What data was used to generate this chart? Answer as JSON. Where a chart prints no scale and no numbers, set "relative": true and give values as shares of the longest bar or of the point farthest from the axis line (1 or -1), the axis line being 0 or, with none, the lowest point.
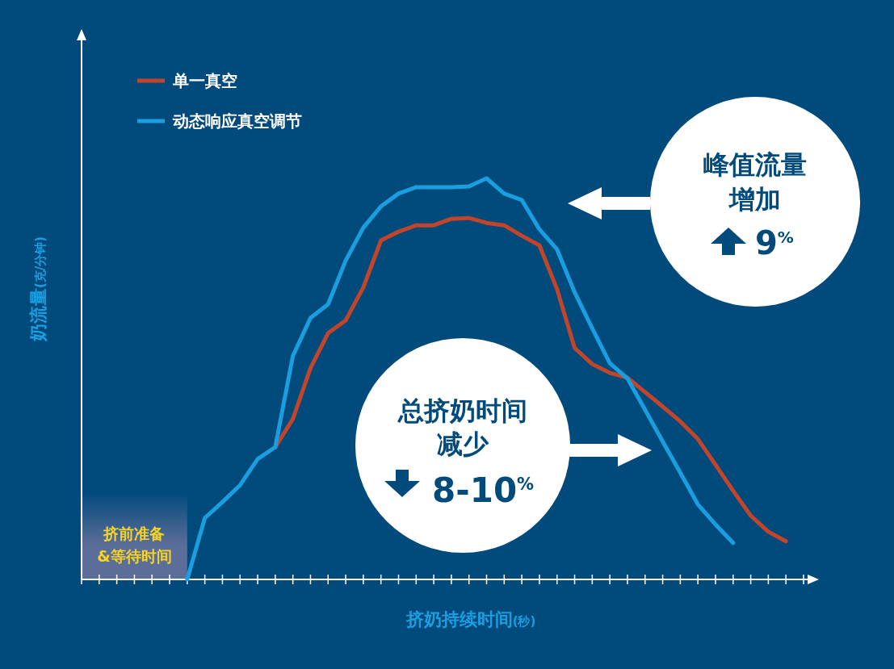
{
  "chart_data": {
    "type": "line",
    "relative": true,
    "xlabel": "挤奶持续时间(秒)",
    "ylabel": "奶流量(克/分钟)",
    "legend": "top left",
    "categories": [
      null,
      null,
      null,
      null,
      null,
      null,
      null,
      null,
      null,
      null,
      null,
      null,
      null,
      null,
      null,
      null,
      null,
      null,
      null,
      null,
      null,
      null,
      null,
      null,
      null,
      null,
      null,
      null,
      null,
      null,
      null,
      null,
      null,
      null,
      null,
      null,
      null,
      null,
      null,
      null,
      null,
      null
    ],
    "series": [
      {
        "name": "单一真空",
        "color": "#c0452b",
        "values": [
          null,
          null,
          null,
          null,
          null,
          null,
          null,
          null,
          null,
          null,
          null,
          0.33,
          0.4,
          0.527,
          0.614,
          0.646,
          0.728,
          0.845,
          0.867,
          0.883,
          0.883,
          0.899,
          0.901,
          0.889,
          0.883,
          0.857,
          0.833,
          0.724,
          0.577,
          0.537,
          0.515,
          0.503,
          0.467,
          0.431,
          0.394,
          0.35,
          0.286,
          0.221,
          0.159,
          0.119,
          0.095,
          null
        ]
      },
      {
        "name": "动态响应真空调节",
        "color": "#1a9ee0",
        "values": [
          null,
          null,
          null,
          null,
          null,
          null,
          0,
          0.153,
          0.193,
          0.235,
          0.3,
          0.33,
          0.557,
          0.652,
          0.686,
          0.795,
          0.877,
          0.93,
          0.962,
          0.978,
          0.978,
          0.978,
          0.98,
          1,
          0.962,
          0.946,
          0.873,
          0.823,
          0.716,
          0.626,
          0.539,
          0.501,
          0.423,
          0.344,
          0.266,
          0.187,
          0.137,
          0.091,
          null,
          null,
          null,
          null
        ]
      }
    ],
    "annotations": [
      "峰值流量",
      "增加",
      "9$^{%}$",
      "总挤奶时间",
      "减少",
      "8-10$^{%}$",
      "挤前准备&等待时间"
    ]
  }
}
